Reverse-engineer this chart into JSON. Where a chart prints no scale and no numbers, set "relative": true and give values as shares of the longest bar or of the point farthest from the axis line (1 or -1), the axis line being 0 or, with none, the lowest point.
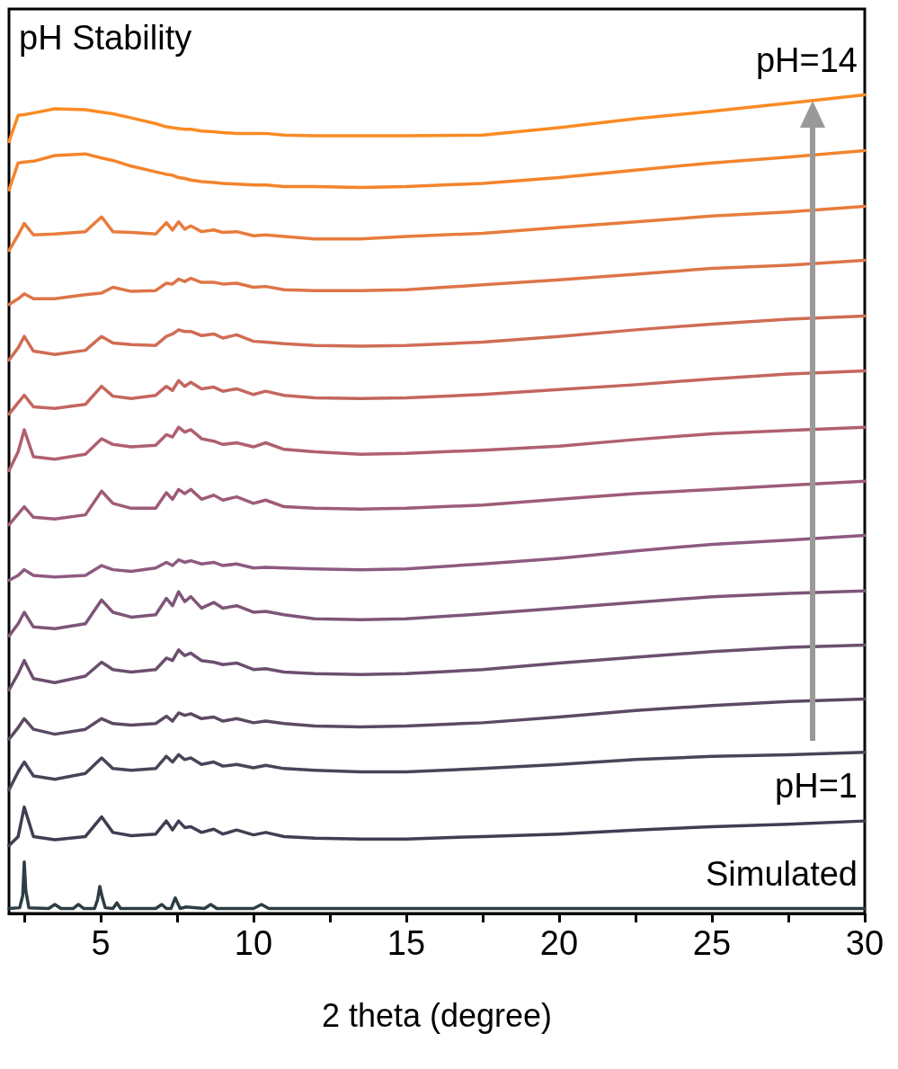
{
  "chart_data": {
    "type": "line",
    "title": "pH Stability",
    "xlabel": "2 theta (degree)",
    "relative": true,
    "xlim": [
      2,
      30
    ],
    "xticks": [
      {
        "value": 2.5,
        "label": null
      },
      5,
      {
        "value": 7.5,
        "label": null
      },
      10,
      {
        "value": 12.5,
        "label": null
      },
      15,
      {
        "value": 17.5,
        "label": null
      },
      20,
      {
        "value": 22.5,
        "label": null
      },
      25,
      {
        "value": 27.5,
        "label": null
      },
      30
    ],
    "grid": false,
    "legend": false,
    "marker": "none",
    "line_style": "solid",
    "x": [
      2.0,
      2.3,
      2.5,
      2.8,
      3.5,
      4.5,
      5.03,
      5.4,
      6.0,
      6.8,
      7.15,
      7.35,
      7.55,
      7.75,
      7.95,
      8.3,
      8.7,
      9.0,
      9.45,
      10.0,
      10.4,
      11,
      12,
      13.5,
      15,
      17.5,
      20,
      22.5,
      25,
      27.5,
      30
    ],
    "series": [
      {
        "name": "pH=14",
        "color": "#fb8b24",
        "values": [
          0.943,
          0.975,
          0.976,
          0.978,
          0.983,
          0.982,
          0.979,
          0.977,
          0.972,
          0.965,
          0.961,
          0.96,
          0.959,
          0.958,
          0.958,
          0.956,
          0.955,
          0.954,
          0.953,
          0.953,
          0.953,
          0.951,
          0.95,
          0.95,
          0.95,
          0.951,
          0.96,
          0.971,
          0.98,
          0.99,
          1.0
        ]
      },
      {
        "color": "#f4842c",
        "values": [
          0.884,
          0.917,
          0.918,
          0.919,
          0.926,
          0.928,
          0.923,
          0.92,
          0.913,
          0.906,
          0.903,
          0.902,
          0.899,
          0.898,
          0.896,
          0.894,
          0.893,
          0.892,
          0.891,
          0.89,
          0.89,
          0.888,
          0.888,
          0.887,
          0.888,
          0.892,
          0.899,
          0.908,
          0.917,
          0.924,
          0.932
        ]
      },
      {
        "color": "#e87c3c",
        "values": [
          0.81,
          0.829,
          0.843,
          0.829,
          0.83,
          0.833,
          0.851,
          0.833,
          0.832,
          0.83,
          0.844,
          0.835,
          0.845,
          0.836,
          0.84,
          0.833,
          0.835,
          0.832,
          0.833,
          0.828,
          0.829,
          0.827,
          0.824,
          0.824,
          0.827,
          0.831,
          0.838,
          0.845,
          0.852,
          0.857,
          0.864
        ]
      },
      {
        "color": "#de7448",
        "values": [
          0.744,
          0.751,
          0.757,
          0.751,
          0.751,
          0.756,
          0.758,
          0.765,
          0.76,
          0.761,
          0.77,
          0.769,
          0.775,
          0.772,
          0.776,
          0.771,
          0.771,
          0.769,
          0.77,
          0.765,
          0.766,
          0.762,
          0.761,
          0.761,
          0.762,
          0.768,
          0.774,
          0.781,
          0.788,
          0.792,
          0.798
        ]
      },
      {
        "color": "#d06c55",
        "values": [
          0.676,
          0.691,
          0.705,
          0.687,
          0.683,
          0.688,
          0.705,
          0.697,
          0.695,
          0.694,
          0.705,
          0.708,
          0.713,
          0.711,
          0.711,
          0.706,
          0.708,
          0.703,
          0.707,
          0.699,
          0.698,
          0.696,
          0.694,
          0.693,
          0.694,
          0.698,
          0.705,
          0.713,
          0.72,
          0.726,
          0.73
        ]
      },
      {
        "color": "#c4665f",
        "values": [
          0.61,
          0.624,
          0.633,
          0.619,
          0.617,
          0.622,
          0.644,
          0.632,
          0.629,
          0.633,
          0.644,
          0.639,
          0.651,
          0.644,
          0.649,
          0.641,
          0.643,
          0.638,
          0.641,
          0.634,
          0.638,
          0.633,
          0.63,
          0.629,
          0.63,
          0.634,
          0.64,
          0.646,
          0.653,
          0.659,
          0.663
        ]
      },
      {
        "color": "#b06070",
        "values": [
          0.541,
          0.564,
          0.591,
          0.558,
          0.555,
          0.561,
          0.58,
          0.573,
          0.57,
          0.572,
          0.585,
          0.582,
          0.594,
          0.588,
          0.591,
          0.58,
          0.577,
          0.573,
          0.575,
          0.57,
          0.575,
          0.567,
          0.564,
          0.561,
          0.562,
          0.566,
          0.571,
          0.579,
          0.586,
          0.59,
          0.594
        ]
      },
      {
        "color": "#9e5b78",
        "values": [
          0.475,
          0.488,
          0.497,
          0.484,
          0.482,
          0.487,
          0.516,
          0.501,
          0.495,
          0.495,
          0.514,
          0.506,
          0.518,
          0.513,
          0.518,
          0.506,
          0.511,
          0.505,
          0.509,
          0.501,
          0.505,
          0.497,
          0.495,
          0.494,
          0.495,
          0.499,
          0.506,
          0.513,
          0.518,
          0.523,
          0.528
        ]
      },
      {
        "color": "#8e5a80",
        "values": [
          0.407,
          0.413,
          0.42,
          0.413,
          0.411,
          0.413,
          0.425,
          0.42,
          0.418,
          0.422,
          0.429,
          0.425,
          0.432,
          0.429,
          0.431,
          0.427,
          0.429,
          0.425,
          0.427,
          0.422,
          0.423,
          0.422,
          0.421,
          0.42,
          0.421,
          0.427,
          0.434,
          0.443,
          0.451,
          0.456,
          0.462
        ]
      },
      {
        "color": "#7e5578",
        "values": [
          0.339,
          0.354,
          0.368,
          0.35,
          0.348,
          0.354,
          0.383,
          0.368,
          0.362,
          0.365,
          0.385,
          0.376,
          0.393,
          0.381,
          0.387,
          0.373,
          0.38,
          0.373,
          0.376,
          0.368,
          0.369,
          0.365,
          0.36,
          0.359,
          0.36,
          0.366,
          0.373,
          0.38,
          0.387,
          0.391,
          0.394
        ]
      },
      {
        "color": "#6c4f6e",
        "values": [
          0.273,
          0.293,
          0.309,
          0.287,
          0.282,
          0.29,
          0.307,
          0.298,
          0.295,
          0.298,
          0.312,
          0.309,
          0.322,
          0.315,
          0.318,
          0.309,
          0.307,
          0.304,
          0.306,
          0.298,
          0.299,
          0.295,
          0.293,
          0.292,
          0.293,
          0.298,
          0.306,
          0.313,
          0.32,
          0.325,
          0.328
        ]
      },
      {
        "color": "#5c4962",
        "values": [
          0.213,
          0.227,
          0.238,
          0.225,
          0.219,
          0.225,
          0.238,
          0.232,
          0.23,
          0.232,
          0.241,
          0.235,
          0.245,
          0.242,
          0.244,
          0.238,
          0.24,
          0.235,
          0.238,
          0.233,
          0.235,
          0.232,
          0.229,
          0.228,
          0.229,
          0.233,
          0.24,
          0.248,
          0.254,
          0.259,
          0.262
        ]
      },
      {
        "color": "#4b4458",
        "values": [
          0.151,
          0.173,
          0.185,
          0.168,
          0.164,
          0.171,
          0.19,
          0.177,
          0.175,
          0.177,
          0.192,
          0.185,
          0.194,
          0.188,
          0.19,
          0.182,
          0.185,
          0.18,
          0.182,
          0.178,
          0.181,
          0.177,
          0.175,
          0.173,
          0.173,
          0.177,
          0.182,
          0.188,
          0.192,
          0.194,
          0.197
        ]
      },
      {
        "name": "pH=1",
        "color": "#3f3e52",
        "values": [
          0.083,
          0.094,
          0.13,
          0.094,
          0.09,
          0.094,
          0.118,
          0.099,
          0.095,
          0.097,
          0.113,
          0.102,
          0.113,
          0.105,
          0.106,
          0.099,
          0.103,
          0.097,
          0.102,
          0.096,
          0.099,
          0.094,
          0.092,
          0.091,
          0.091,
          0.094,
          0.097,
          0.102,
          0.106,
          0.109,
          0.113
        ]
      },
      {
        "name": "Simulated",
        "color": "#2e3c44",
        "x": [
          2.0,
          2.35,
          2.45,
          2.5,
          2.55,
          2.65,
          3.3,
          3.5,
          3.7,
          4.1,
          4.27,
          4.45,
          4.8,
          4.9,
          4.97,
          5.05,
          5.15,
          5.4,
          5.53,
          5.65,
          6.8,
          7.0,
          7.15,
          7.3,
          7.44,
          7.6,
          7.8,
          8.4,
          8.6,
          8.8,
          10.0,
          10.26,
          10.5,
          30
        ],
        "values": [
          0.006,
          0.007,
          0.022,
          0.063,
          0.028,
          0.007,
          0.006,
          0.011,
          0.006,
          0.006,
          0.011,
          0.006,
          0.006,
          0.017,
          0.033,
          0.02,
          0.007,
          0.006,
          0.013,
          0.006,
          0.006,
          0.011,
          0.006,
          0.006,
          0.019,
          0.006,
          0.008,
          0.006,
          0.011,
          0.006,
          0.006,
          0.011,
          0.006,
          0.006
        ]
      }
    ]
  }
}
